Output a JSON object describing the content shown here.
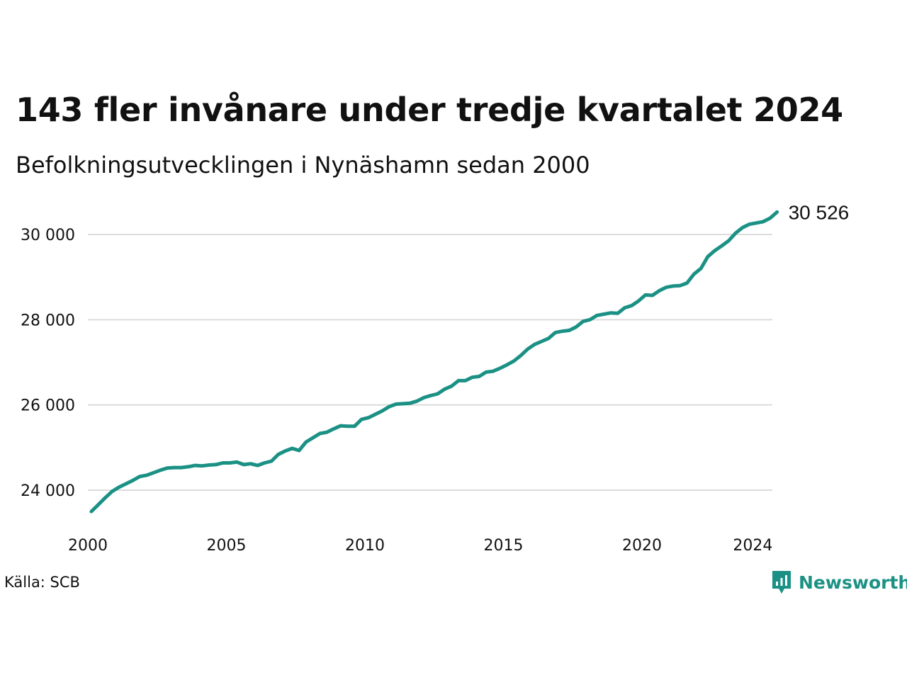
{
  "header": {
    "title": "143 fler invånare under tredje kvartalet 2024",
    "subtitle": "Befolkningsutvecklingen i Nynäshamn sedan 2000"
  },
  "footer": {
    "source": "Källa: SCB",
    "brand": "Newsworthy",
    "brand_icon": "newsworthy-logo-icon"
  },
  "colors": {
    "line": "#1b9185",
    "grid": "#dcdcdc",
    "brand": "#1b9185"
  },
  "chart_data": {
    "type": "line",
    "title": "143 fler invånare under tredje kvartalet 2024",
    "subtitle": "Befolkningsutvecklingen i Nynäshamn sedan 2000",
    "xlabel": "",
    "ylabel": "",
    "grid": "horizontal",
    "xlim": [
      2000,
      2024.6
    ],
    "ylim": [
      23200,
      30900
    ],
    "x_ticks": [
      2000,
      2005,
      2010,
      2015,
      2020,
      2024
    ],
    "x_tick_labels": [
      "2000",
      "2005",
      "2010",
      "2015",
      "2020",
      "2024"
    ],
    "y_ticks": [
      24000,
      26000,
      28000,
      30000
    ],
    "y_tick_labels": [
      "24 000",
      "26 000",
      "28 000",
      "30 000"
    ],
    "end_label": "30 526",
    "series": [
      {
        "values": [
          [
            2000.125,
            23500
          ],
          [
            2000.375,
            23660
          ],
          [
            2000.625,
            23820
          ],
          [
            2000.875,
            23970
          ],
          [
            2001.125,
            24070
          ],
          [
            2001.375,
            24150
          ],
          [
            2001.625,
            24230
          ],
          [
            2001.875,
            24320
          ],
          [
            2002.125,
            24350
          ],
          [
            2002.375,
            24410
          ],
          [
            2002.625,
            24470
          ],
          [
            2002.875,
            24520
          ],
          [
            2003.125,
            24530
          ],
          [
            2003.375,
            24530
          ],
          [
            2003.625,
            24550
          ],
          [
            2003.875,
            24580
          ],
          [
            2004.125,
            24570
          ],
          [
            2004.375,
            24590
          ],
          [
            2004.625,
            24600
          ],
          [
            2004.875,
            24640
          ],
          [
            2005.125,
            24640
          ],
          [
            2005.375,
            24660
          ],
          [
            2005.625,
            24600
          ],
          [
            2005.875,
            24620
          ],
          [
            2006.125,
            24580
          ],
          [
            2006.375,
            24640
          ],
          [
            2006.625,
            24680
          ],
          [
            2006.875,
            24840
          ],
          [
            2007.125,
            24920
          ],
          [
            2007.375,
            24980
          ],
          [
            2007.625,
            24930
          ],
          [
            2007.875,
            25130
          ],
          [
            2008.125,
            25230
          ],
          [
            2008.375,
            25330
          ],
          [
            2008.625,
            25360
          ],
          [
            2008.875,
            25440
          ],
          [
            2009.125,
            25510
          ],
          [
            2009.375,
            25500
          ],
          [
            2009.625,
            25500
          ],
          [
            2009.875,
            25660
          ],
          [
            2010.125,
            25700
          ],
          [
            2010.375,
            25780
          ],
          [
            2010.625,
            25860
          ],
          [
            2010.875,
            25960
          ],
          [
            2011.125,
            26020
          ],
          [
            2011.375,
            26030
          ],
          [
            2011.625,
            26040
          ],
          [
            2011.875,
            26090
          ],
          [
            2012.125,
            26170
          ],
          [
            2012.375,
            26220
          ],
          [
            2012.625,
            26260
          ],
          [
            2012.875,
            26370
          ],
          [
            2013.125,
            26440
          ],
          [
            2013.375,
            26570
          ],
          [
            2013.625,
            26570
          ],
          [
            2013.875,
            26650
          ],
          [
            2014.125,
            26670
          ],
          [
            2014.375,
            26770
          ],
          [
            2014.625,
            26790
          ],
          [
            2014.875,
            26860
          ],
          [
            2015.125,
            26940
          ],
          [
            2015.375,
            27030
          ],
          [
            2015.625,
            27160
          ],
          [
            2015.875,
            27310
          ],
          [
            2016.125,
            27420
          ],
          [
            2016.375,
            27490
          ],
          [
            2016.625,
            27560
          ],
          [
            2016.875,
            27700
          ],
          [
            2017.125,
            27730
          ],
          [
            2017.375,
            27750
          ],
          [
            2017.625,
            27830
          ],
          [
            2017.875,
            27960
          ],
          [
            2018.125,
            28000
          ],
          [
            2018.375,
            28100
          ],
          [
            2018.625,
            28130
          ],
          [
            2018.875,
            28160
          ],
          [
            2019.125,
            28150
          ],
          [
            2019.375,
            28280
          ],
          [
            2019.625,
            28330
          ],
          [
            2019.875,
            28440
          ],
          [
            2020.125,
            28580
          ],
          [
            2020.375,
            28570
          ],
          [
            2020.625,
            28680
          ],
          [
            2020.875,
            28760
          ],
          [
            2021.125,
            28790
          ],
          [
            2021.375,
            28800
          ],
          [
            2021.625,
            28860
          ],
          [
            2021.875,
            29070
          ],
          [
            2022.125,
            29200
          ],
          [
            2022.375,
            29480
          ],
          [
            2022.625,
            29620
          ],
          [
            2022.875,
            29730
          ],
          [
            2023.125,
            29850
          ],
          [
            2023.375,
            30030
          ],
          [
            2023.625,
            30160
          ],
          [
            2023.875,
            30240
          ],
          [
            2024.125,
            30270
          ],
          [
            2024.375,
            30300
          ],
          [
            2024.625,
            30383
          ],
          [
            2024.875,
            30526
          ]
        ]
      }
    ]
  }
}
